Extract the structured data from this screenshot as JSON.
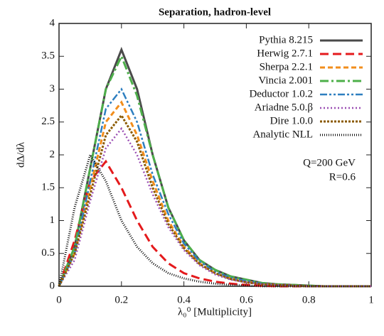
{
  "chart_data": {
    "type": "line",
    "title": "Separation, hadron-level",
    "xlabel": "λ₀⁰ [Multiplicity]",
    "ylabel": "dΔ/dλ",
    "annotations": [
      "Q=200 GeV",
      "R=0.6"
    ],
    "x": [
      0,
      0.05,
      0.1,
      0.15,
      0.2,
      0.25,
      0.3,
      0.35,
      0.4,
      0.45,
      0.5,
      0.55,
      0.6,
      0.65,
      0.7,
      0.75,
      0.8,
      0.85,
      0.9,
      0.95,
      1
    ],
    "xlim": [
      0,
      1
    ],
    "xticks": [
      0,
      0.2,
      0.4,
      0.6,
      0.8,
      1
    ],
    "ylim": [
      0,
      4
    ],
    "yticks": [
      0,
      0.5,
      1,
      1.5,
      2,
      2.5,
      3,
      3.5,
      4
    ],
    "series": [
      {
        "name": "Pythia 8.215",
        "color": "#4a4a4a",
        "dash": "none",
        "width": 3,
        "values": [
          0,
          0.6,
          1.8,
          3.0,
          3.6,
          3.0,
          2.0,
          1.2,
          0.7,
          0.4,
          0.25,
          0.15,
          0.1,
          0.05,
          0.03,
          0.02,
          0.01,
          0,
          0,
          0,
          0
        ]
      },
      {
        "name": "Herwig 2.7.1",
        "color": "#e41a1c",
        "dash": "12,6",
        "width": 3,
        "values": [
          0,
          0.7,
          1.6,
          1.9,
          1.5,
          1.0,
          0.6,
          0.35,
          0.2,
          0.12,
          0.07,
          0.04,
          0.02,
          0.01,
          0,
          0,
          0,
          0,
          0,
          0,
          0
        ]
      },
      {
        "name": "Sherpa 2.2.1",
        "color": "#f28e1c",
        "dash": "7,4",
        "width": 3,
        "values": [
          0,
          0.5,
          1.5,
          2.5,
          2.8,
          2.3,
          1.6,
          1.0,
          0.6,
          0.35,
          0.2,
          0.12,
          0.07,
          0.04,
          0.02,
          0.01,
          0,
          0,
          0,
          0,
          0
        ]
      },
      {
        "name": "Vincia 2.001",
        "color": "#4daf4a",
        "dash": "12,4,3,4",
        "width": 3,
        "values": [
          0,
          0.6,
          1.8,
          3.0,
          3.5,
          2.9,
          2.0,
          1.2,
          0.7,
          0.4,
          0.25,
          0.15,
          0.1,
          0.05,
          0.03,
          0.02,
          0.01,
          0,
          0,
          0,
          0
        ]
      },
      {
        "name": "Deductor 1.0.2",
        "color": "#2e7fc0",
        "dash": "10,3,3,3,3,3",
        "width": 2.5,
        "values": [
          0,
          0.5,
          1.6,
          2.7,
          3.0,
          2.5,
          1.7,
          1.1,
          0.65,
          0.38,
          0.22,
          0.13,
          0.08,
          0.04,
          0.02,
          0.01,
          0,
          0,
          0,
          0,
          0
        ]
      },
      {
        "name": "Ariadne 5.0.β",
        "color": "#9b4fb4",
        "dash": "2,3",
        "width": 2.5,
        "values": [
          0,
          0.4,
          1.3,
          2.1,
          2.4,
          2.0,
          1.4,
          0.9,
          0.55,
          0.32,
          0.18,
          0.1,
          0.06,
          0.03,
          0.02,
          0.01,
          0,
          0,
          0,
          0,
          0
        ]
      },
      {
        "name": "Dire 1.0.0",
        "color": "#8b5a00",
        "dash": "3,2",
        "width": 3,
        "values": [
          0,
          0.5,
          1.4,
          2.3,
          2.6,
          2.2,
          1.5,
          0.95,
          0.58,
          0.34,
          0.2,
          0.11,
          0.06,
          0.03,
          0.02,
          0.01,
          0,
          0,
          0,
          0,
          0
        ]
      },
      {
        "name": "Analytic NLL",
        "color": "#111111",
        "dash": "1,2",
        "width": 3,
        "values": [
          0,
          1.2,
          2.0,
          1.6,
          1.0,
          0.6,
          0.35,
          0.2,
          0.12,
          0.07,
          0.04,
          0.02,
          0.01,
          0,
          0,
          0,
          0,
          0,
          0,
          0,
          0
        ]
      }
    ]
  }
}
